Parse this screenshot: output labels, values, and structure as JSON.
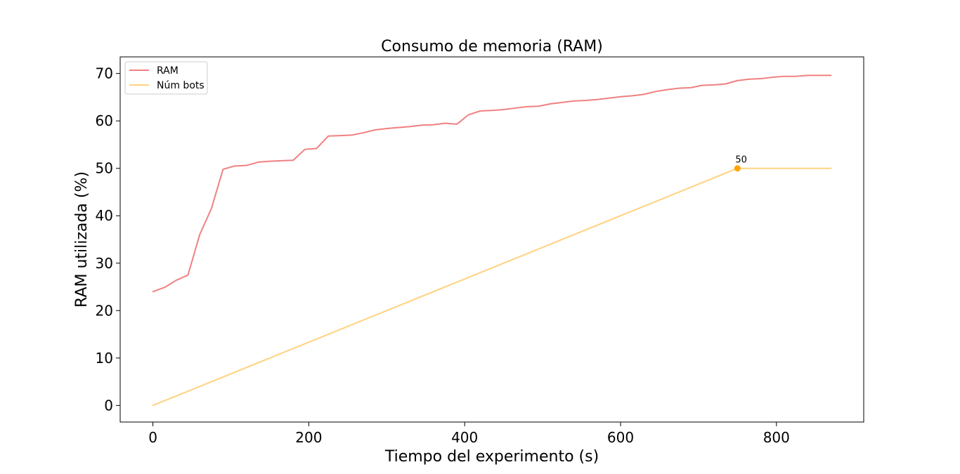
{
  "chart_data": {
    "type": "line",
    "title": "Consumo de memoria (RAM)",
    "xlabel": "Tiempo del experimento (s)",
    "ylabel": "RAM utilizada (%)",
    "xlim": [
      -42,
      912
    ],
    "ylim": [
      -3.5,
      73.5
    ],
    "xticks": [
      0,
      200,
      400,
      600,
      800
    ],
    "yticks": [
      0,
      10,
      20,
      30,
      40,
      50,
      60,
      70
    ],
    "grid": false,
    "legend_position": "top-left",
    "series": [
      {
        "name": "RAM",
        "color": "#f08080",
        "x": [
          0,
          15,
          30,
          45,
          60,
          75,
          90,
          105,
          120,
          135,
          150,
          165,
          180,
          195,
          210,
          225,
          240,
          255,
          270,
          285,
          300,
          315,
          330,
          345,
          360,
          375,
          390,
          405,
          420,
          435,
          450,
          465,
          480,
          495,
          510,
          525,
          540,
          555,
          570,
          585,
          600,
          615,
          630,
          645,
          660,
          675,
          690,
          705,
          720,
          735,
          750,
          765,
          780,
          795,
          810,
          825,
          840,
          855,
          870
        ],
        "values": [
          24.0,
          24.9,
          26.4,
          27.5,
          36.0,
          41.5,
          49.8,
          50.5,
          50.6,
          51.3,
          51.5,
          51.6,
          51.7,
          54.0,
          54.2,
          56.8,
          56.9,
          57.0,
          57.5,
          58.1,
          58.4,
          58.6,
          58.8,
          59.1,
          59.2,
          59.5,
          59.3,
          61.3,
          62.1,
          62.2,
          62.4,
          62.7,
          63.0,
          63.1,
          63.6,
          63.9,
          64.2,
          64.3,
          64.5,
          64.8,
          65.1,
          65.3,
          65.6,
          66.2,
          66.6,
          66.9,
          67.0,
          67.5,
          67.6,
          67.8,
          68.5,
          68.8,
          68.9,
          69.2,
          69.4,
          69.4,
          69.6,
          69.6,
          69.6
        ]
      },
      {
        "name": "Núm bots",
        "color": "#ffd27f",
        "x": [
          0,
          750,
          870
        ],
        "values": [
          0,
          50,
          50
        ]
      }
    ],
    "annotations": [
      {
        "text": "50",
        "x": 750,
        "y": 50,
        "marker_color": "#ffa500"
      }
    ]
  }
}
